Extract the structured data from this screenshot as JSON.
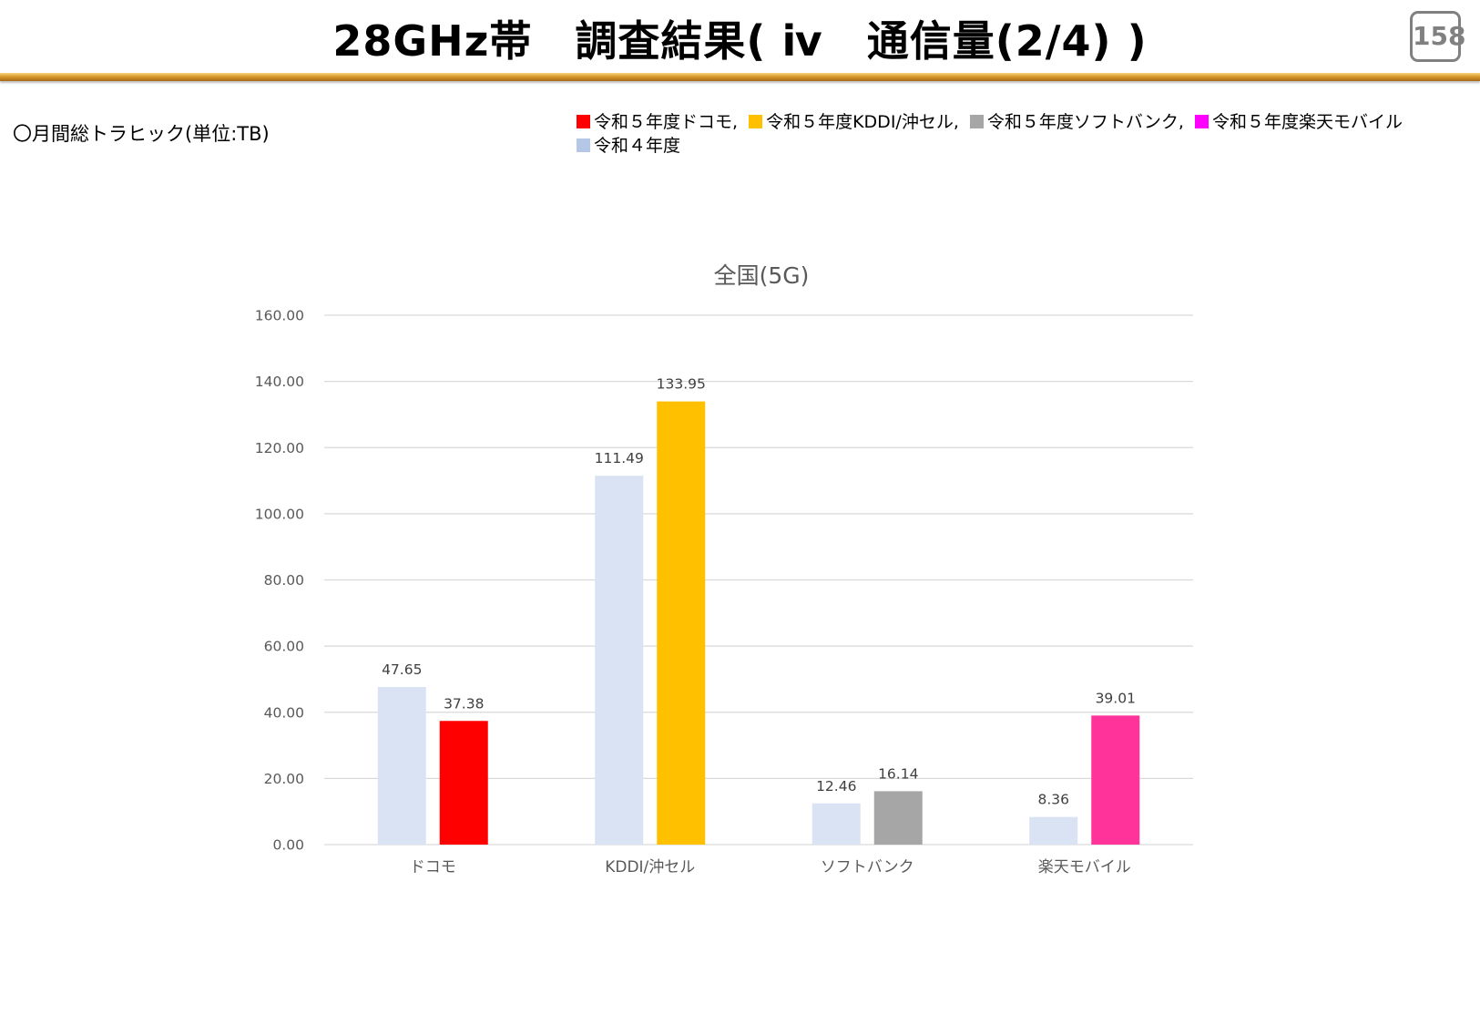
{
  "page": {
    "title": "28GHz帯　調査結果( ⅳ　通信量(2/4) )",
    "page_number": "158",
    "subtitle": "〇月間総トラヒック(単位:TB)"
  },
  "legend": [
    {
      "label": "令和５年度ドコモ,",
      "color": "#ff0000"
    },
    {
      "label": "令和５年度KDDI/沖セル,",
      "color": "#ffc000"
    },
    {
      "label": "令和５年度ソフトバンク,",
      "color": "#a6a6a6"
    },
    {
      "label": "令和５年度楽天モバイル",
      "color": "#ff00ff"
    },
    {
      "label": "令和４年度",
      "color": "#b4c7e7"
    }
  ],
  "chart_data": {
    "type": "bar",
    "title": "全国(5G)",
    "categories": [
      "ドコモ",
      "KDDI/沖セル",
      "ソフトバンク",
      "楽天モバイル"
    ],
    "series": [
      {
        "values": [
          47.65,
          111.49,
          12.46,
          8.36
        ],
        "colors": [
          "#dae3f3",
          "#dae3f3",
          "#dae3f3",
          "#dae3f3"
        ],
        "labels": [
          "47.65",
          "111.49",
          "12.46",
          "8.36"
        ]
      },
      {
        "values": [
          37.38,
          133.95,
          16.14,
          39.01
        ],
        "colors": [
          "#ff0000",
          "#ffc000",
          "#a6a6a6",
          "#ff3399"
        ],
        "labels": [
          "37.38",
          "133.95",
          "16.14",
          "39.01"
        ]
      }
    ],
    "yticks": [
      "0.00",
      "20.00",
      "40.00",
      "60.00",
      "80.00",
      "100.00",
      "120.00",
      "140.00",
      "160.00"
    ],
    "ylim": [
      0,
      160
    ],
    "grid": true,
    "gridColor": "#d9d9d9",
    "textColor": "#595959"
  }
}
